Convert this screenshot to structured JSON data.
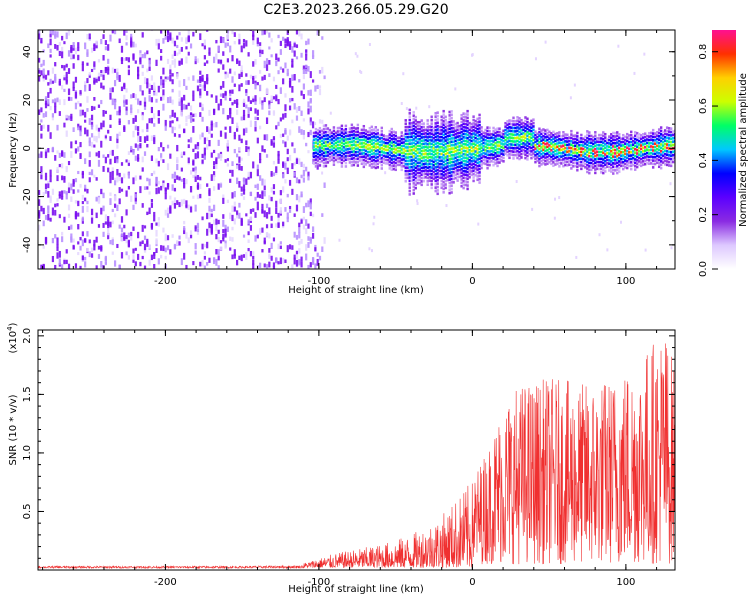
{
  "title": "C2E3.2023.266.05.29.G20",
  "chart_data": [
    {
      "type": "heatmap",
      "xlabel": "Height of straight line (km)",
      "ylabel": "Frequency (Hz)",
      "xlim": [
        -283,
        132
      ],
      "ylim": [
        -50,
        49
      ],
      "xticks": [
        "-200",
        "-100",
        "0",
        "100"
      ],
      "yticks": [
        "-40",
        "-20",
        "0",
        "20",
        "40"
      ],
      "colorbar": {
        "label": "Normalized spectral amplitude",
        "range": [
          0.0,
          0.88
        ],
        "ticks": [
          "0.0",
          "0.2",
          "0.4",
          "0.6",
          "0.8"
        ],
        "colormap": [
          "#ffffff",
          "#ddc8ff",
          "#8a2be2",
          "#5b00ff",
          "#0000ff",
          "#00c8ff",
          "#00ff66",
          "#ccff00",
          "#ffd000",
          "#ff3000",
          "#ff1090"
        ]
      },
      "regions": [
        {
          "x_range": [
            -283,
            -104
          ],
          "freq_range": [
            -50,
            49
          ],
          "amplitude": 0.05,
          "description_key": "broadband noise"
        },
        {
          "x_range": [
            -104,
            132
          ],
          "center_freq": 0,
          "band_halfwidth": 6,
          "amplitude_range": [
            0.1,
            0.85
          ]
        }
      ]
    },
    {
      "type": "line",
      "xlabel": "Height of straight line (km)",
      "ylabel": "SNR (10 * v/v)",
      "scale_label": "(x10",
      "scale_exp": "4",
      "scale_close": ")",
      "xlim": [
        -283,
        132
      ],
      "ylim": [
        0,
        2.05
      ],
      "xticks": [
        "-200",
        "-100",
        "0",
        "100"
      ],
      "yticks": [
        "0.5",
        "1.0",
        "1.5",
        "2.0"
      ],
      "color": "#f03030",
      "envelope": [
        {
          "x": -283,
          "y": 0.03
        },
        {
          "x": -150,
          "y": 0.03
        },
        {
          "x": -110,
          "y": 0.04
        },
        {
          "x": -90,
          "y": 0.12
        },
        {
          "x": -60,
          "y": 0.2
        },
        {
          "x": -40,
          "y": 0.28
        },
        {
          "x": -20,
          "y": 0.45
        },
        {
          "x": -10,
          "y": 0.6
        },
        {
          "x": 0,
          "y": 0.75
        },
        {
          "x": 10,
          "y": 1.0
        },
        {
          "x": 20,
          "y": 1.4
        },
        {
          "x": 30,
          "y": 1.55
        },
        {
          "x": 50,
          "y": 1.6
        },
        {
          "x": 70,
          "y": 1.55
        },
        {
          "x": 90,
          "y": 1.6
        },
        {
          "x": 110,
          "y": 1.8
        },
        {
          "x": 125,
          "y": 2.05
        },
        {
          "x": 132,
          "y": 1.7
        }
      ]
    }
  ]
}
